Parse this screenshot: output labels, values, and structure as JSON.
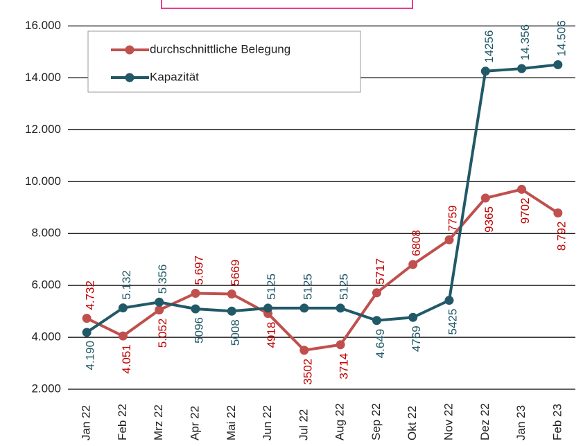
{
  "chart_data": {
    "type": "line",
    "categories": [
      "Jan 22",
      "Feb 22",
      "Mrz 22",
      "Apr 22",
      "Mai 22",
      "Jun 22",
      "Jul 22",
      "Aug 22",
      "Sep 22",
      "Okt 22",
      "Nov 22",
      "Dez 22",
      "Jan 23",
      "Feb 23"
    ],
    "series": [
      {
        "name": "durchschnittliche Belegung",
        "color": "#c0504d",
        "label_color": "#c00000",
        "values": [
          4732,
          4051,
          5052,
          5697,
          5669,
          4918,
          3502,
          3714,
          5717,
          6808,
          7759,
          9365,
          9702,
          8792
        ],
        "value_labels": [
          "4.732",
          "4.051",
          "5.052",
          "5.697",
          "5669",
          "4918",
          "3502",
          "3714",
          "5717",
          "6808",
          "7759",
          "9365",
          "9702",
          "8.792"
        ]
      },
      {
        "name": "Kapazität",
        "color": "#215968",
        "label_color": "#215968",
        "values": [
          4190,
          5132,
          5356,
          5096,
          5008,
          5125,
          5125,
          5125,
          4649,
          4769,
          5425,
          14256,
          14356,
          14506
        ],
        "value_labels": [
          "4.190",
          "5.132",
          "5.356",
          "5096",
          "5008",
          "5125",
          "5125",
          "5125",
          "4.649",
          "4769",
          "5425",
          "14256",
          "14.356",
          "14.506"
        ]
      }
    ],
    "ylim": [
      2000,
      17000
    ],
    "yticks": [
      {
        "value": 2000,
        "label": "2.000"
      },
      {
        "value": 4000,
        "label": "4.000"
      },
      {
        "value": 6000,
        "label": "6.000"
      },
      {
        "value": 8000,
        "label": "8.000"
      },
      {
        "value": 10000,
        "label": "10.000"
      },
      {
        "value": 12000,
        "label": "12.000"
      },
      {
        "value": 14000,
        "label": "14.000"
      },
      {
        "value": 16000,
        "label": "16.000"
      }
    ],
    "grid": true
  }
}
